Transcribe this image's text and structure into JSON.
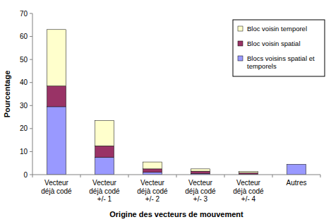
{
  "chart_data": {
    "type": "bar",
    "stacked": true,
    "x_label": "Origine des vecteurs de mouvement",
    "y_label": "Pourcentage",
    "categories": [
      "Vecteur\ndéjà codé",
      "Vecteur\ndéjà codé\n+/- 1",
      "Vecteur\ndéjà codé\n+/- 2",
      "Vecteur\ndéjà codé\n+/- 3",
      "Vecteur\ndéjà codé\n+/- 4",
      "Autres"
    ],
    "series": [
      {
        "name": "Blocs voisins spatial et temporels",
        "color": "#9999ff",
        "values": [
          29.5,
          7.5,
          1,
          0.5,
          0.2,
          4.5
        ]
      },
      {
        "name": "Bloc voisin spatial",
        "color": "#993366",
        "values": [
          9,
          5,
          1.5,
          1,
          0.6,
          0
        ]
      },
      {
        "name": "Bloc voisin temporel",
        "color": "#ffffcc",
        "values": [
          24.5,
          11,
          3,
          1,
          0.6,
          0
        ]
      }
    ],
    "ylim": [
      0,
      70
    ],
    "yticks": [
      0,
      10,
      20,
      30,
      40,
      50,
      60,
      70
    ],
    "grid": false,
    "legend": "upper right"
  }
}
